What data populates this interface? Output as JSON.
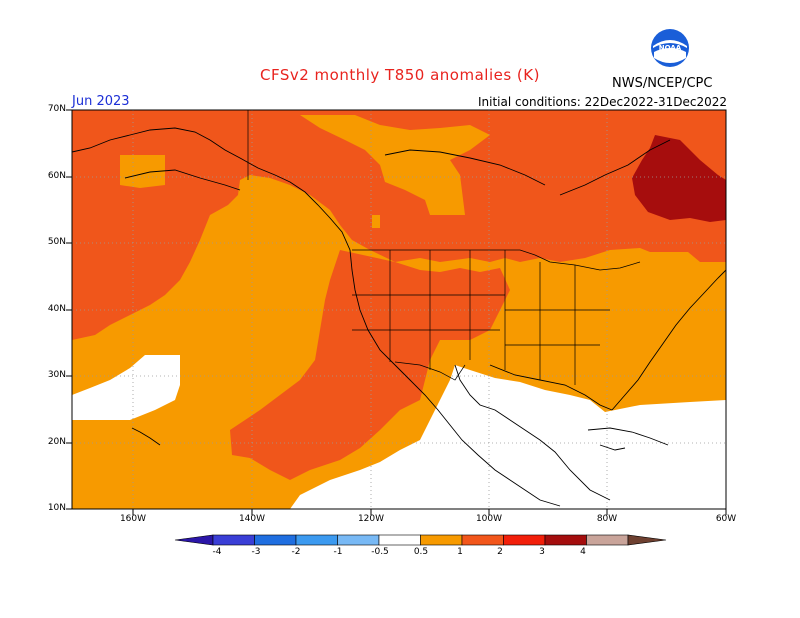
{
  "title": "CFSv2 monthly T850 anomalies (K)",
  "agency": "NWS/NCEP/CPC",
  "logo_text": "NOAA",
  "month": "Jun 2023",
  "initial_conditions": "Initial conditions: 22Dec2022-31Dec2022",
  "latitude_labels": [
    "70N",
    "60N",
    "50N",
    "40N",
    "30N",
    "20N",
    "10N"
  ],
  "longitude_labels": [
    "160W",
    "140W",
    "120W",
    "100W",
    "80W",
    "60W"
  ],
  "colorbar": {
    "labels": [
      "-4",
      "-3",
      "-2",
      "-1",
      "-0.5",
      "0.5",
      "1",
      "2",
      "3",
      "4"
    ],
    "colors": [
      "#2b16a8",
      "#3a3ed6",
      "#1f6ee0",
      "#3c9af0",
      "#78b9f5",
      "#ffffff",
      "#f79a00",
      "#f2561b",
      "#f21f0a",
      "#a40d0d",
      "#c9a49a",
      "#6e4030"
    ]
  },
  "legend_colors": {
    "anomaly_0_5_to_1": "#f79a00",
    "anomaly_1_to_2": "#f0561b",
    "anomaly_2_to_3": "#a60d0d",
    "neutral": "#ffffff"
  }
}
